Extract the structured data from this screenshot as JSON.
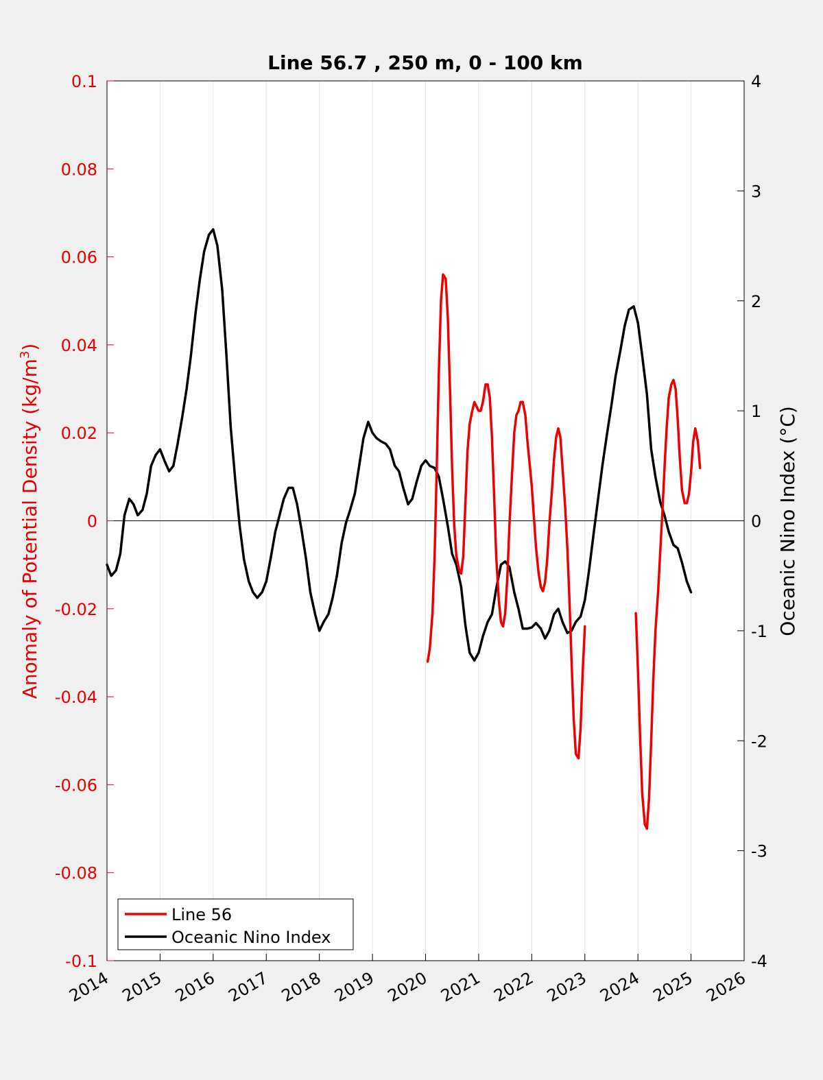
{
  "chart_data": {
    "type": "line",
    "title": "Line 56.7 , 250 m, 0 - 100 km",
    "ylabel_left": "Anomaly of Potential Density (kg/m",
    "ylabel_left_sup": "3",
    "ylabel_left_close": ")",
    "ylabel_right": "Oceanic Nino Index (°C)",
    "xlim": [
      2014,
      2026
    ],
    "ylim_left": [
      -0.1,
      0.1
    ],
    "ylim_right": [
      -4,
      4
    ],
    "x_ticks": [
      2014,
      2015,
      2016,
      2017,
      2018,
      2019,
      2020,
      2021,
      2022,
      2023,
      2024,
      2025,
      2026
    ],
    "x_tick_labels": [
      "2014",
      "2015",
      "2016",
      "2017",
      "2018",
      "2019",
      "2020",
      "2021",
      "2022",
      "2023",
      "2024",
      "2025",
      "2026"
    ],
    "y_left_ticks": [
      0.1,
      0.08,
      0.06,
      0.04,
      0.02,
      0,
      -0.02,
      -0.04,
      -0.06,
      -0.08,
      -0.1
    ],
    "y_left_tick_labels": [
      "0.1",
      "0.08",
      "0.06",
      "0.04",
      "0.02",
      "0",
      "-0.02",
      "-0.04",
      "-0.06",
      "-0.08",
      "-0.1"
    ],
    "y_right_ticks": [
      4,
      3,
      2,
      1,
      0,
      -1,
      -2,
      -3,
      -4
    ],
    "y_right_tick_labels": [
      "4",
      "3",
      "2",
      "1",
      "0",
      "-1",
      "-2",
      "-3",
      "-4"
    ],
    "grid": "vertical",
    "legend_position": "bottom-left",
    "colors": {
      "left_axis": "#e60000",
      "line56": "#ee0000",
      "oni": "#000000"
    },
    "series": [
      {
        "name": "Line 56",
        "axis": "left",
        "segments": [
          [
            [
              2020.04,
              -0.032
            ],
            [
              2020.08,
              -0.029
            ],
            [
              2020.13,
              -0.021
            ],
            [
              2020.17,
              -0.008
            ],
            [
              2020.21,
              0.012
            ],
            [
              2020.25,
              0.034
            ],
            [
              2020.29,
              0.05
            ],
            [
              2020.33,
              0.056
            ],
            [
              2020.38,
              0.055
            ],
            [
              2020.42,
              0.046
            ],
            [
              2020.46,
              0.03
            ],
            [
              2020.5,
              0.012
            ],
            [
              2020.54,
              -0.001
            ],
            [
              2020.58,
              -0.008
            ],
            [
              2020.63,
              -0.011
            ],
            [
              2020.67,
              -0.012
            ],
            [
              2020.71,
              -0.008
            ],
            [
              2020.75,
              0.004
            ],
            [
              2020.79,
              0.016
            ],
            [
              2020.83,
              0.022
            ],
            [
              2020.88,
              0.025
            ],
            [
              2020.92,
              0.027
            ],
            [
              2020.96,
              0.026
            ],
            [
              2021.0,
              0.025
            ],
            [
              2021.04,
              0.025
            ],
            [
              2021.08,
              0.027
            ],
            [
              2021.13,
              0.031
            ],
            [
              2021.17,
              0.031
            ],
            [
              2021.21,
              0.028
            ],
            [
              2021.25,
              0.019
            ],
            [
              2021.29,
              0.006
            ],
            [
              2021.33,
              -0.008
            ],
            [
              2021.38,
              -0.018
            ],
            [
              2021.42,
              -0.023
            ],
            [
              2021.46,
              -0.024
            ],
            [
              2021.5,
              -0.021
            ],
            [
              2021.54,
              -0.013
            ],
            [
              2021.58,
              -0.001
            ],
            [
              2021.63,
              0.011
            ],
            [
              2021.67,
              0.02
            ],
            [
              2021.71,
              0.024
            ],
            [
              2021.75,
              0.025
            ],
            [
              2021.79,
              0.027
            ],
            [
              2021.83,
              0.027
            ],
            [
              2021.88,
              0.024
            ],
            [
              2021.92,
              0.018
            ],
            [
              2021.96,
              0.013
            ],
            [
              2022.0,
              0.008
            ],
            [
              2022.04,
              0.001
            ],
            [
              2022.08,
              -0.006
            ],
            [
              2022.13,
              -0.012
            ],
            [
              2022.17,
              -0.015
            ],
            [
              2022.21,
              -0.016
            ],
            [
              2022.25,
              -0.014
            ],
            [
              2022.29,
              -0.009
            ],
            [
              2022.33,
              -0.001
            ],
            [
              2022.38,
              0.007
            ],
            [
              2022.42,
              0.014
            ],
            [
              2022.46,
              0.019
            ],
            [
              2022.5,
              0.021
            ],
            [
              2022.54,
              0.019
            ],
            [
              2022.58,
              0.012
            ],
            [
              2022.63,
              0.003
            ],
            [
              2022.67,
              -0.006
            ],
            [
              2022.71,
              -0.018
            ],
            [
              2022.75,
              -0.032
            ],
            [
              2022.79,
              -0.045
            ],
            [
              2022.83,
              -0.053
            ],
            [
              2022.88,
              -0.054
            ],
            [
              2022.92,
              -0.047
            ],
            [
              2022.96,
              -0.034
            ],
            [
              2023.0,
              -0.024
            ]
          ],
          [
            [
              2023.96,
              -0.021
            ],
            [
              2024.0,
              -0.034
            ],
            [
              2024.04,
              -0.049
            ],
            [
              2024.08,
              -0.062
            ],
            [
              2024.13,
              -0.069
            ],
            [
              2024.17,
              -0.07
            ],
            [
              2024.21,
              -0.063
            ],
            [
              2024.25,
              -0.05
            ],
            [
              2024.29,
              -0.036
            ],
            [
              2024.33,
              -0.025
            ],
            [
              2024.38,
              -0.016
            ],
            [
              2024.42,
              -0.007
            ],
            [
              2024.46,
              0.002
            ],
            [
              2024.5,
              0.012
            ],
            [
              2024.54,
              0.021
            ],
            [
              2024.58,
              0.028
            ],
            [
              2024.63,
              0.031
            ],
            [
              2024.67,
              0.032
            ],
            [
              2024.71,
              0.03
            ],
            [
              2024.75,
              0.023
            ],
            [
              2024.79,
              0.014
            ],
            [
              2024.83,
              0.007
            ],
            [
              2024.88,
              0.004
            ],
            [
              2024.92,
              0.004
            ],
            [
              2024.96,
              0.006
            ],
            [
              2025.0,
              0.011
            ],
            [
              2025.04,
              0.018
            ],
            [
              2025.08,
              0.021
            ],
            [
              2025.13,
              0.018
            ],
            [
              2025.17,
              0.012
            ]
          ]
        ]
      },
      {
        "name": "Oceanic Nino Index",
        "axis": "right",
        "segments": [
          [
            [
              2014.0,
              -0.4
            ],
            [
              2014.08,
              -0.5
            ],
            [
              2014.17,
              -0.45
            ],
            [
              2014.25,
              -0.3
            ],
            [
              2014.33,
              0.05
            ],
            [
              2014.42,
              0.2
            ],
            [
              2014.5,
              0.15
            ],
            [
              2014.58,
              0.05
            ],
            [
              2014.67,
              0.1
            ],
            [
              2014.75,
              0.25
            ],
            [
              2014.83,
              0.5
            ],
            [
              2014.92,
              0.6
            ],
            [
              2015.0,
              0.65
            ],
            [
              2015.08,
              0.55
            ],
            [
              2015.17,
              0.45
            ],
            [
              2015.25,
              0.5
            ],
            [
              2015.33,
              0.7
            ],
            [
              2015.42,
              0.95
            ],
            [
              2015.5,
              1.2
            ],
            [
              2015.58,
              1.5
            ],
            [
              2015.67,
              1.9
            ],
            [
              2015.75,
              2.2
            ],
            [
              2015.83,
              2.45
            ],
            [
              2015.92,
              2.6
            ],
            [
              2016.0,
              2.65
            ],
            [
              2016.08,
              2.5
            ],
            [
              2016.17,
              2.1
            ],
            [
              2016.25,
              1.5
            ],
            [
              2016.33,
              0.85
            ],
            [
              2016.42,
              0.35
            ],
            [
              2016.5,
              -0.05
            ],
            [
              2016.58,
              -0.35
            ],
            [
              2016.67,
              -0.55
            ],
            [
              2016.75,
              -0.65
            ],
            [
              2016.83,
              -0.7
            ],
            [
              2016.92,
              -0.65
            ],
            [
              2017.0,
              -0.55
            ],
            [
              2017.08,
              -0.35
            ],
            [
              2017.17,
              -0.1
            ],
            [
              2017.25,
              0.05
            ],
            [
              2017.33,
              0.2
            ],
            [
              2017.42,
              0.3
            ],
            [
              2017.5,
              0.3
            ],
            [
              2017.58,
              0.15
            ],
            [
              2017.67,
              -0.1
            ],
            [
              2017.75,
              -0.35
            ],
            [
              2017.83,
              -0.65
            ],
            [
              2017.92,
              -0.85
            ],
            [
              2018.0,
              -1.0
            ],
            [
              2018.08,
              -0.92
            ],
            [
              2018.17,
              -0.85
            ],
            [
              2018.25,
              -0.7
            ],
            [
              2018.33,
              -0.5
            ],
            [
              2018.42,
              -0.2
            ],
            [
              2018.5,
              -0.02
            ],
            [
              2018.58,
              0.1
            ],
            [
              2018.67,
              0.25
            ],
            [
              2018.75,
              0.5
            ],
            [
              2018.83,
              0.75
            ],
            [
              2018.92,
              0.9
            ],
            [
              2019.0,
              0.8
            ],
            [
              2019.08,
              0.75
            ],
            [
              2019.17,
              0.72
            ],
            [
              2019.25,
              0.7
            ],
            [
              2019.33,
              0.65
            ],
            [
              2019.42,
              0.5
            ],
            [
              2019.5,
              0.45
            ],
            [
              2019.58,
              0.3
            ],
            [
              2019.67,
              0.15
            ],
            [
              2019.75,
              0.2
            ],
            [
              2019.83,
              0.35
            ],
            [
              2019.92,
              0.5
            ],
            [
              2020.0,
              0.55
            ],
            [
              2020.08,
              0.5
            ],
            [
              2020.17,
              0.48
            ],
            [
              2020.25,
              0.4
            ],
            [
              2020.33,
              0.2
            ],
            [
              2020.42,
              -0.05
            ],
            [
              2020.5,
              -0.3
            ],
            [
              2020.58,
              -0.4
            ],
            [
              2020.67,
              -0.6
            ],
            [
              2020.75,
              -0.95
            ],
            [
              2020.83,
              -1.2
            ],
            [
              2020.92,
              -1.27
            ],
            [
              2021.0,
              -1.2
            ],
            [
              2021.08,
              -1.05
            ],
            [
              2021.17,
              -0.92
            ],
            [
              2021.25,
              -0.85
            ],
            [
              2021.33,
              -0.62
            ],
            [
              2021.42,
              -0.4
            ],
            [
              2021.5,
              -0.37
            ],
            [
              2021.58,
              -0.42
            ],
            [
              2021.67,
              -0.65
            ],
            [
              2021.75,
              -0.8
            ],
            [
              2021.83,
              -0.98
            ],
            [
              2021.92,
              -0.98
            ],
            [
              2022.0,
              -0.97
            ],
            [
              2022.08,
              -0.93
            ],
            [
              2022.17,
              -0.98
            ],
            [
              2022.25,
              -1.07
            ],
            [
              2022.33,
              -1.0
            ],
            [
              2022.42,
              -0.85
            ],
            [
              2022.5,
              -0.8
            ],
            [
              2022.58,
              -0.92
            ],
            [
              2022.67,
              -1.02
            ],
            [
              2022.75,
              -1.0
            ],
            [
              2022.83,
              -0.92
            ],
            [
              2022.92,
              -0.87
            ],
            [
              2023.0,
              -0.72
            ],
            [
              2023.08,
              -0.45
            ],
            [
              2023.17,
              -0.1
            ],
            [
              2023.25,
              0.2
            ],
            [
              2023.33,
              0.5
            ],
            [
              2023.42,
              0.8
            ],
            [
              2023.5,
              1.05
            ],
            [
              2023.58,
              1.32
            ],
            [
              2023.67,
              1.55
            ],
            [
              2023.75,
              1.77
            ],
            [
              2023.83,
              1.92
            ],
            [
              2023.92,
              1.95
            ],
            [
              2024.0,
              1.8
            ],
            [
              2024.08,
              1.5
            ],
            [
              2024.17,
              1.15
            ],
            [
              2024.25,
              0.65
            ],
            [
              2024.33,
              0.4
            ],
            [
              2024.42,
              0.17
            ],
            [
              2024.5,
              0.05
            ],
            [
              2024.58,
              -0.1
            ],
            [
              2024.67,
              -0.22
            ],
            [
              2024.75,
              -0.25
            ],
            [
              2024.83,
              -0.38
            ],
            [
              2024.92,
              -0.55
            ],
            [
              2025.0,
              -0.65
            ]
          ]
        ]
      }
    ]
  }
}
